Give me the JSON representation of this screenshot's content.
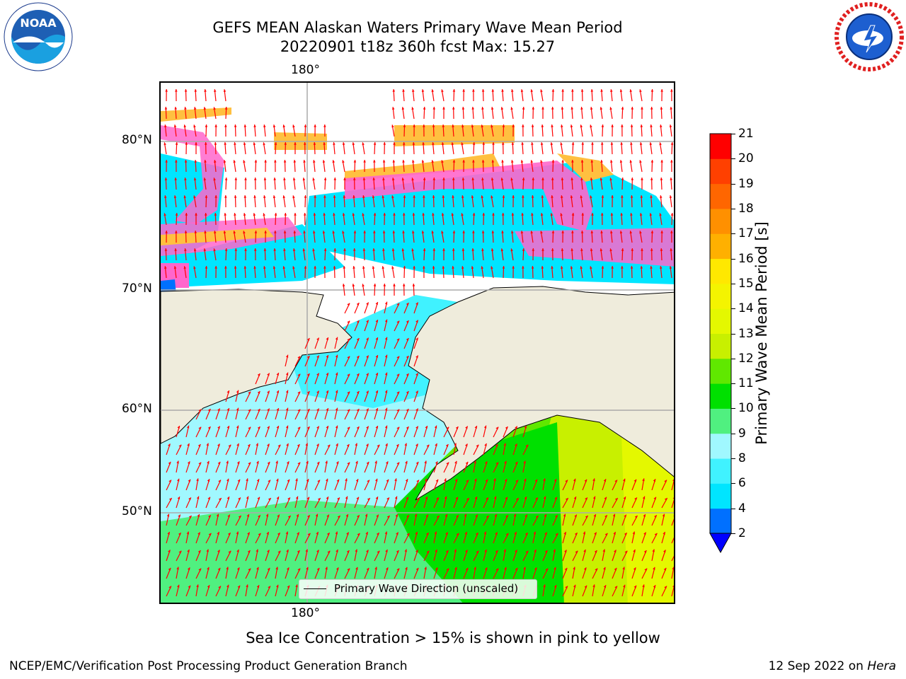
{
  "title": {
    "line1": "GEFS MEAN Alaskan Waters Primary Wave Mean Period",
    "line2": "20220901 t18z 360h fcst   Max: 15.27"
  },
  "logos": {
    "left": {
      "icon": "noaa-logo",
      "text": "NOAA",
      "ring_text": "NATIONAL OCEANIC AND ATMOSPHERIC ADMINISTRATION · U.S. DEPARTMENT OF COMMERCE"
    },
    "right": {
      "icon": "nws-logo",
      "ring_text": "NATIONAL WEATHER SERVICE"
    }
  },
  "map": {
    "lon_label_top": "180°",
    "lon_label_bottom": "180°",
    "lat_labels": [
      "80°N",
      "70°N",
      "60°N",
      "50°N"
    ],
    "legend_label": "Primary Wave Direction (unscaled)",
    "colors": {
      "land": "#efecdc",
      "ice": "#ff66cc",
      "ice_high": "#ffc040",
      "arrow": "#ff0000",
      "grid": "#aaaaaa"
    }
  },
  "colorbar": {
    "label": "Primary Wave Mean Period [s]",
    "ticks": [
      "21",
      "20",
      "19",
      "18",
      "17",
      "16",
      "15",
      "14",
      "13",
      "12",
      "11",
      "10",
      "9",
      "8",
      "6",
      "4",
      "2"
    ],
    "levels": [
      {
        "label": "2-4",
        "color": "#0070ff"
      },
      {
        "label": "4-6",
        "color": "#00e5ff"
      },
      {
        "label": "6-8",
        "color": "#40f2ff"
      },
      {
        "label": "8-9",
        "color": "#a0f8ff"
      },
      {
        "label": "9-10",
        "color": "#50f080"
      },
      {
        "label": "10-11",
        "color": "#00e000"
      },
      {
        "label": "11-12",
        "color": "#60e800"
      },
      {
        "label": "12-13",
        "color": "#c8f000"
      },
      {
        "label": "13-14",
        "color": "#e4f800"
      },
      {
        "label": "14-15",
        "color": "#f4f400"
      },
      {
        "label": "15-16",
        "color": "#ffe800"
      },
      {
        "label": "16-17",
        "color": "#ffb000"
      },
      {
        "label": "17-18",
        "color": "#ff9000"
      },
      {
        "label": "18-19",
        "color": "#ff6600"
      },
      {
        "label": "19-20",
        "color": "#ff4000"
      },
      {
        "label": "20-21",
        "color": "#ff0000"
      }
    ],
    "below_color": "#0000ff"
  },
  "footnote": "Sea Ice Concentration > 15% is shown in pink to yellow",
  "footer": {
    "left": "NCEP/EMC/Verification Post Processing Product Generation Branch",
    "right_date": "12 Sep 2022 on ",
    "right_host": "Hera"
  }
}
